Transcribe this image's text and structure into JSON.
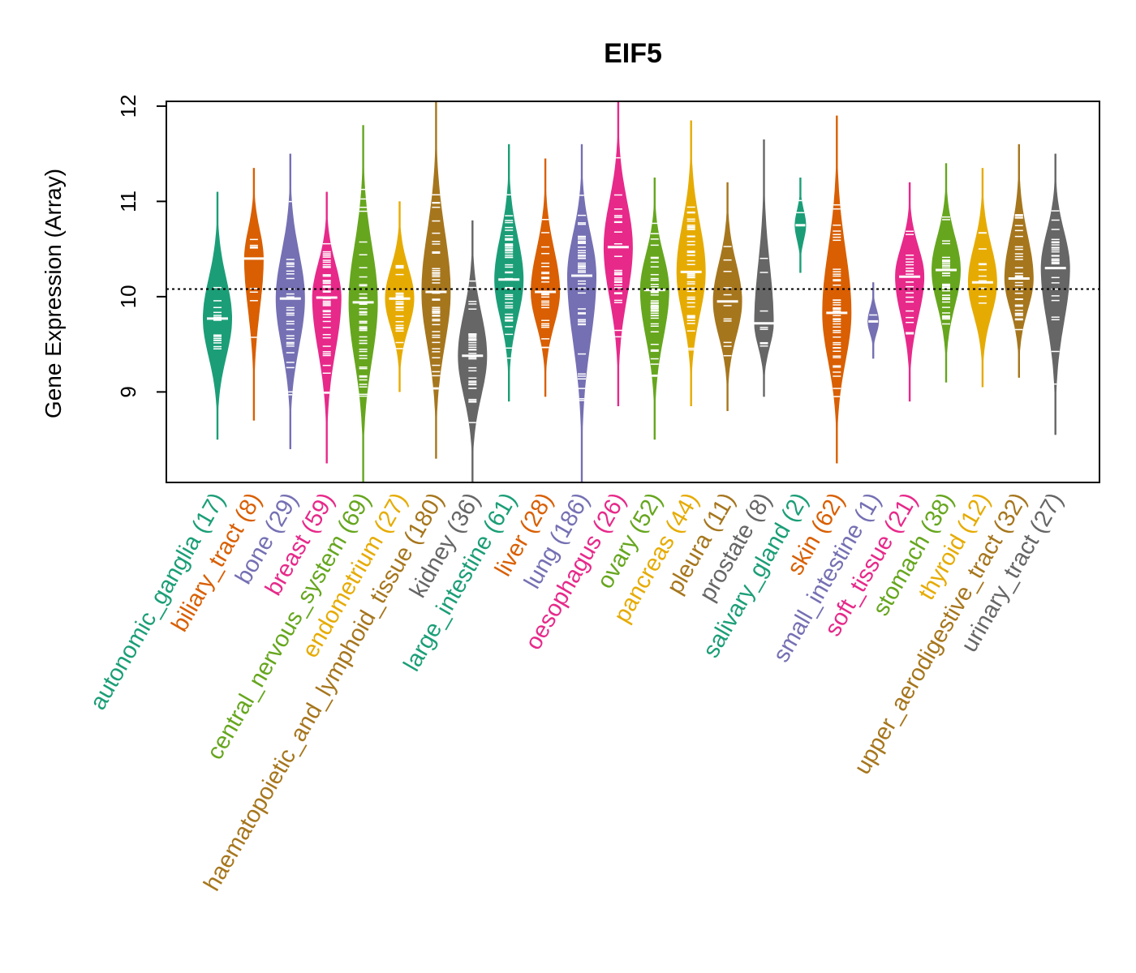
{
  "chart_data": {
    "type": "violin",
    "title": "EIF5",
    "ylabel": "Gene Expression (Array)",
    "xlabel": "",
    "ylim": [
      8.05,
      12.05
    ],
    "yticks": [
      9,
      10,
      11,
      12
    ],
    "reference_line": 10.08,
    "grid": false,
    "legend": "none",
    "categories": [
      {
        "name": "autonomic_ganglia",
        "n": 17,
        "label": "autonomic_ganglia (17)",
        "color": "#1B9E77",
        "median": 9.77,
        "min": 8.5,
        "max": 11.1
      },
      {
        "name": "biliary_tract",
        "n": 8,
        "label": "biliary_tract (8)",
        "color": "#D95F02",
        "median": 10.4,
        "min": 8.7,
        "max": 11.35
      },
      {
        "name": "bone",
        "n": 29,
        "label": "bone (29)",
        "color": "#7570B3",
        "median": 9.98,
        "min": 8.4,
        "max": 11.5
      },
      {
        "name": "breast",
        "n": 59,
        "label": "breast (59)",
        "color": "#E7298A",
        "median": 9.99,
        "min": 8.25,
        "max": 11.1
      },
      {
        "name": "central_nervous_system",
        "n": 69,
        "label": "central_nervous_system (69)",
        "color": "#66A61E",
        "median": 9.94,
        "min": 8.05,
        "max": 11.8
      },
      {
        "name": "endometrium",
        "n": 27,
        "label": "endometrium (27)",
        "color": "#E6AB02",
        "median": 9.98,
        "min": 9.0,
        "max": 11.0
      },
      {
        "name": "haematopoietic_and_lymphoid_tissue",
        "n": 180,
        "label": "haematopoietic_and_lymphoid_tissue (180)",
        "color": "#A6761D",
        "median": 10.05,
        "min": 8.3,
        "max": 12.05
      },
      {
        "name": "kidney",
        "n": 36,
        "label": "kidney (36)",
        "color": "#666666",
        "median": 9.38,
        "min": 8.05,
        "max": 10.8
      },
      {
        "name": "large_intestine",
        "n": 61,
        "label": "large_intestine (61)",
        "color": "#1B9E77",
        "median": 10.18,
        "min": 8.9,
        "max": 11.6
      },
      {
        "name": "liver",
        "n": 28,
        "label": "liver (28)",
        "color": "#D95F02",
        "median": 10.05,
        "min": 8.95,
        "max": 11.45
      },
      {
        "name": "lung",
        "n": 186,
        "label": "lung (186)",
        "color": "#7570B3",
        "median": 10.22,
        "min": 8.05,
        "max": 11.6
      },
      {
        "name": "oesophagus",
        "n": 26,
        "label": "oesophagus (26)",
        "color": "#E7298A",
        "median": 10.52,
        "min": 8.85,
        "max": 12.05
      },
      {
        "name": "ovary",
        "n": 52,
        "label": "ovary (52)",
        "color": "#66A61E",
        "median": 10.07,
        "min": 8.5,
        "max": 11.25
      },
      {
        "name": "pancreas",
        "n": 44,
        "label": "pancreas (44)",
        "color": "#E6AB02",
        "median": 10.26,
        "min": 8.85,
        "max": 11.85
      },
      {
        "name": "pleura",
        "n": 11,
        "label": "pleura (11)",
        "color": "#A6761D",
        "median": 9.95,
        "min": 8.8,
        "max": 11.2
      },
      {
        "name": "prostate",
        "n": 8,
        "label": "prostate (8)",
        "color": "#666666",
        "median": 9.72,
        "min": 8.95,
        "max": 11.65
      },
      {
        "name": "salivary_gland",
        "n": 2,
        "label": "salivary_gland (2)",
        "color": "#1B9E77",
        "median": 10.75,
        "min": 10.25,
        "max": 11.25
      },
      {
        "name": "skin",
        "n": 62,
        "label": "skin (62)",
        "color": "#D95F02",
        "median": 9.83,
        "min": 8.25,
        "max": 11.9
      },
      {
        "name": "small_intestine",
        "n": 1,
        "label": "small_intestine (1)",
        "color": "#7570B3",
        "median": 9.74,
        "min": 9.35,
        "max": 10.15
      },
      {
        "name": "soft_tissue",
        "n": 21,
        "label": "soft_tissue (21)",
        "color": "#E7298A",
        "median": 10.21,
        "min": 8.9,
        "max": 11.2
      },
      {
        "name": "stomach",
        "n": 38,
        "label": "stomach (38)",
        "color": "#66A61E",
        "median": 10.28,
        "min": 9.1,
        "max": 11.4
      },
      {
        "name": "thyroid",
        "n": 12,
        "label": "thyroid (12)",
        "color": "#E6AB02",
        "median": 10.15,
        "min": 9.05,
        "max": 11.35
      },
      {
        "name": "upper_aerodigestive_tract",
        "n": 32,
        "label": "upper_aerodigestive_tract (32)",
        "color": "#A6761D",
        "median": 10.19,
        "min": 9.15,
        "max": 11.6
      },
      {
        "name": "urinary_tract",
        "n": 27,
        "label": "urinary_tract (27)",
        "color": "#666666",
        "median": 10.3,
        "min": 8.55,
        "max": 11.5
      }
    ]
  }
}
